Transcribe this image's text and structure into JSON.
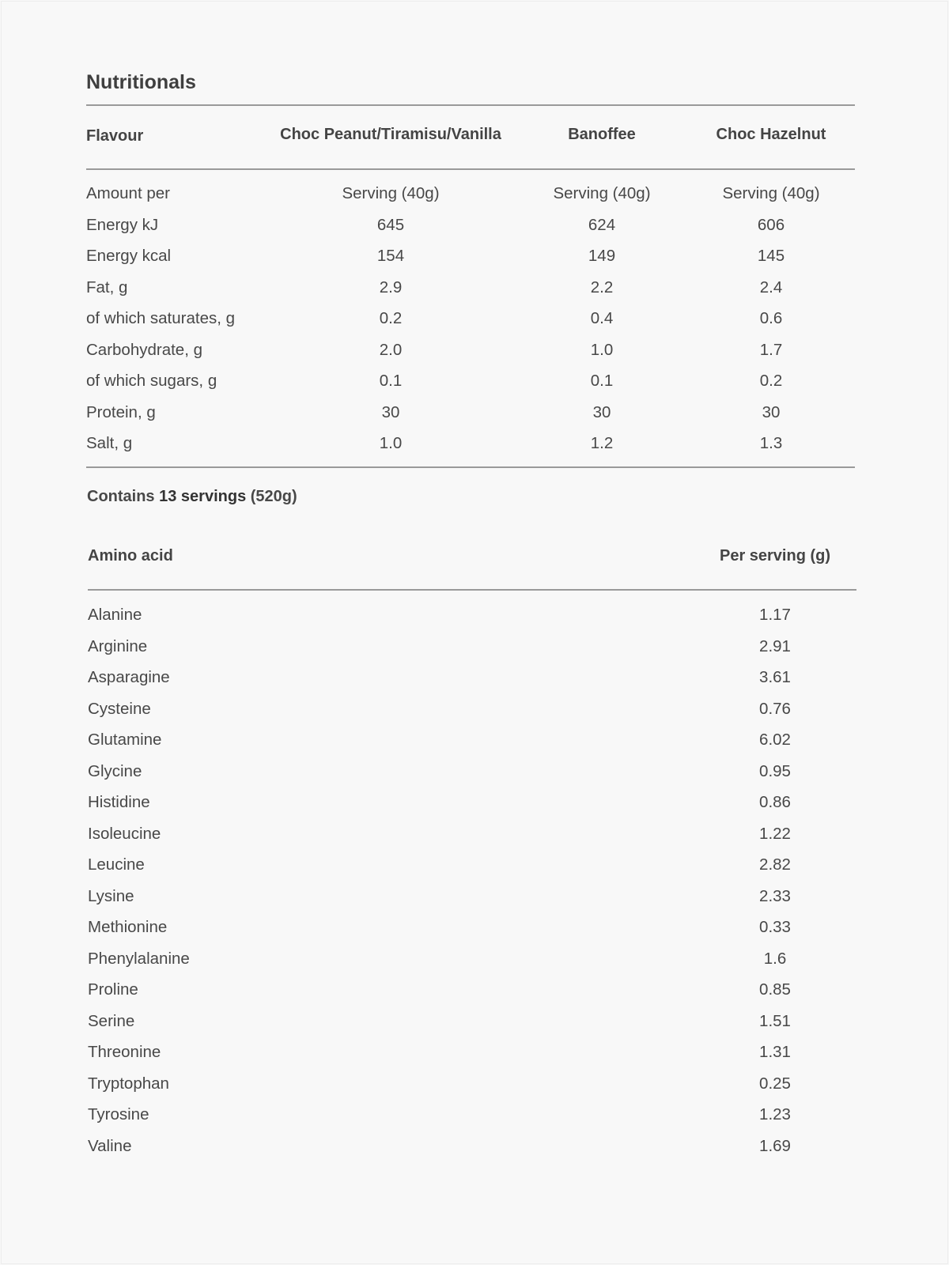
{
  "title": "Nutritionals",
  "nutrition": {
    "headers": [
      "Flavour",
      "Choc Peanut/Tiramisu/Vanilla",
      "Banoffee",
      "Choc Hazelnut"
    ],
    "rows": [
      [
        "Amount per",
        "Serving (40g)",
        "Serving (40g)",
        "Serving (40g)"
      ],
      [
        "Energy kJ",
        "645",
        "624",
        "606"
      ],
      [
        "Energy kcal",
        "154",
        "149",
        "145"
      ],
      [
        "Fat, g",
        "2.9",
        "2.2",
        "2.4"
      ],
      [
        "of which saturates, g",
        "0.2",
        "0.4",
        "0.6"
      ],
      [
        "Carbohydrate, g",
        "2.0",
        "1.0",
        "1.7"
      ],
      [
        "of which sugars, g",
        "0.1",
        "0.1",
        "0.2"
      ],
      [
        "Protein, g",
        "30",
        "30",
        "30"
      ],
      [
        "Salt, g",
        "1.0",
        "1.2",
        "1.3"
      ]
    ]
  },
  "contains": {
    "prefix": "Contains ",
    "count": "13 servings",
    "suffix": " (520g)"
  },
  "amino": {
    "headers": [
      "Amino acid",
      "Per serving (g)"
    ],
    "rows": [
      [
        "Alanine",
        "1.17"
      ],
      [
        "Arginine",
        "2.91"
      ],
      [
        "Asparagine",
        "3.61"
      ],
      [
        "Cysteine",
        "0.76"
      ],
      [
        "Glutamine",
        "6.02"
      ],
      [
        "Glycine",
        "0.95"
      ],
      [
        "Histidine",
        "0.86"
      ],
      [
        "Isoleucine",
        "1.22"
      ],
      [
        "Leucine",
        "2.82"
      ],
      [
        "Lysine",
        "2.33"
      ],
      [
        "Methionine",
        "0.33"
      ],
      [
        "Phenylalanine",
        "1.6"
      ],
      [
        "Proline",
        "0.85"
      ],
      [
        "Serine",
        "1.51"
      ],
      [
        "Threonine",
        "1.31"
      ],
      [
        "Tryptophan",
        "0.25"
      ],
      [
        "Tyrosine",
        "1.23"
      ],
      [
        "Valine",
        "1.69"
      ]
    ]
  }
}
